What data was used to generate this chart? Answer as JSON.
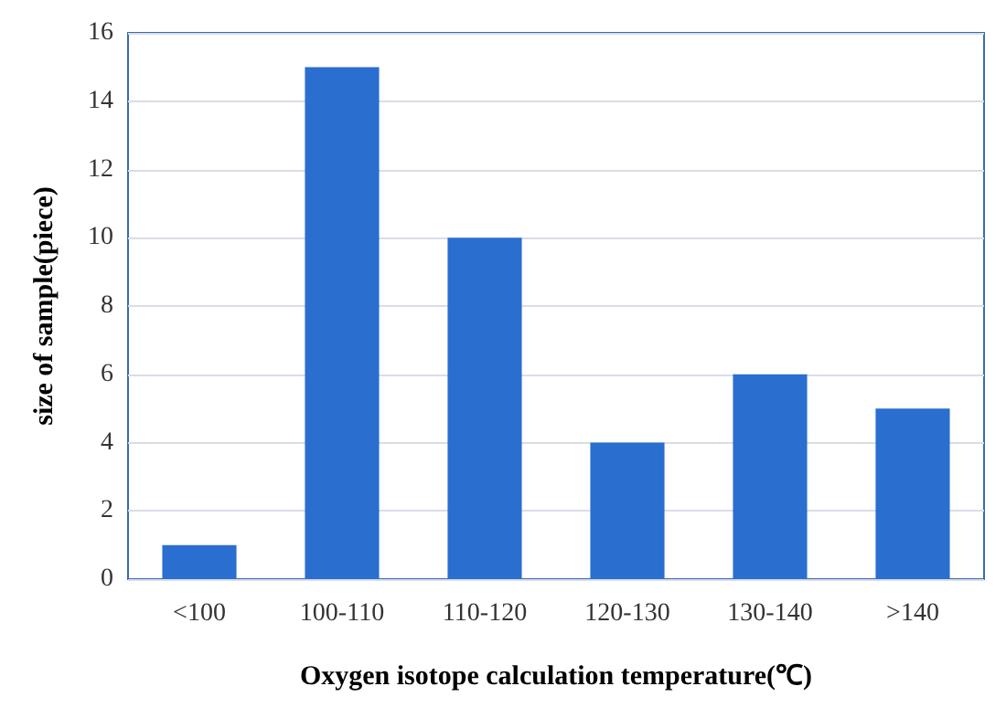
{
  "chart_data": {
    "type": "bar",
    "xlabel": "Oxygen isotope calculation temperature(℃)",
    "ylabel": "size of sample(piece)",
    "categories": [
      "<100",
      "100-110",
      "110-120",
      "120-130",
      "130-140",
      ">140"
    ],
    "values": [
      1,
      15,
      10,
      4,
      6,
      5
    ],
    "color": "#2a6ecf",
    "ylim": [
      0,
      16
    ],
    "yticks": [
      0,
      2,
      4,
      6,
      8,
      10,
      12,
      14,
      16
    ],
    "grid": "y"
  }
}
